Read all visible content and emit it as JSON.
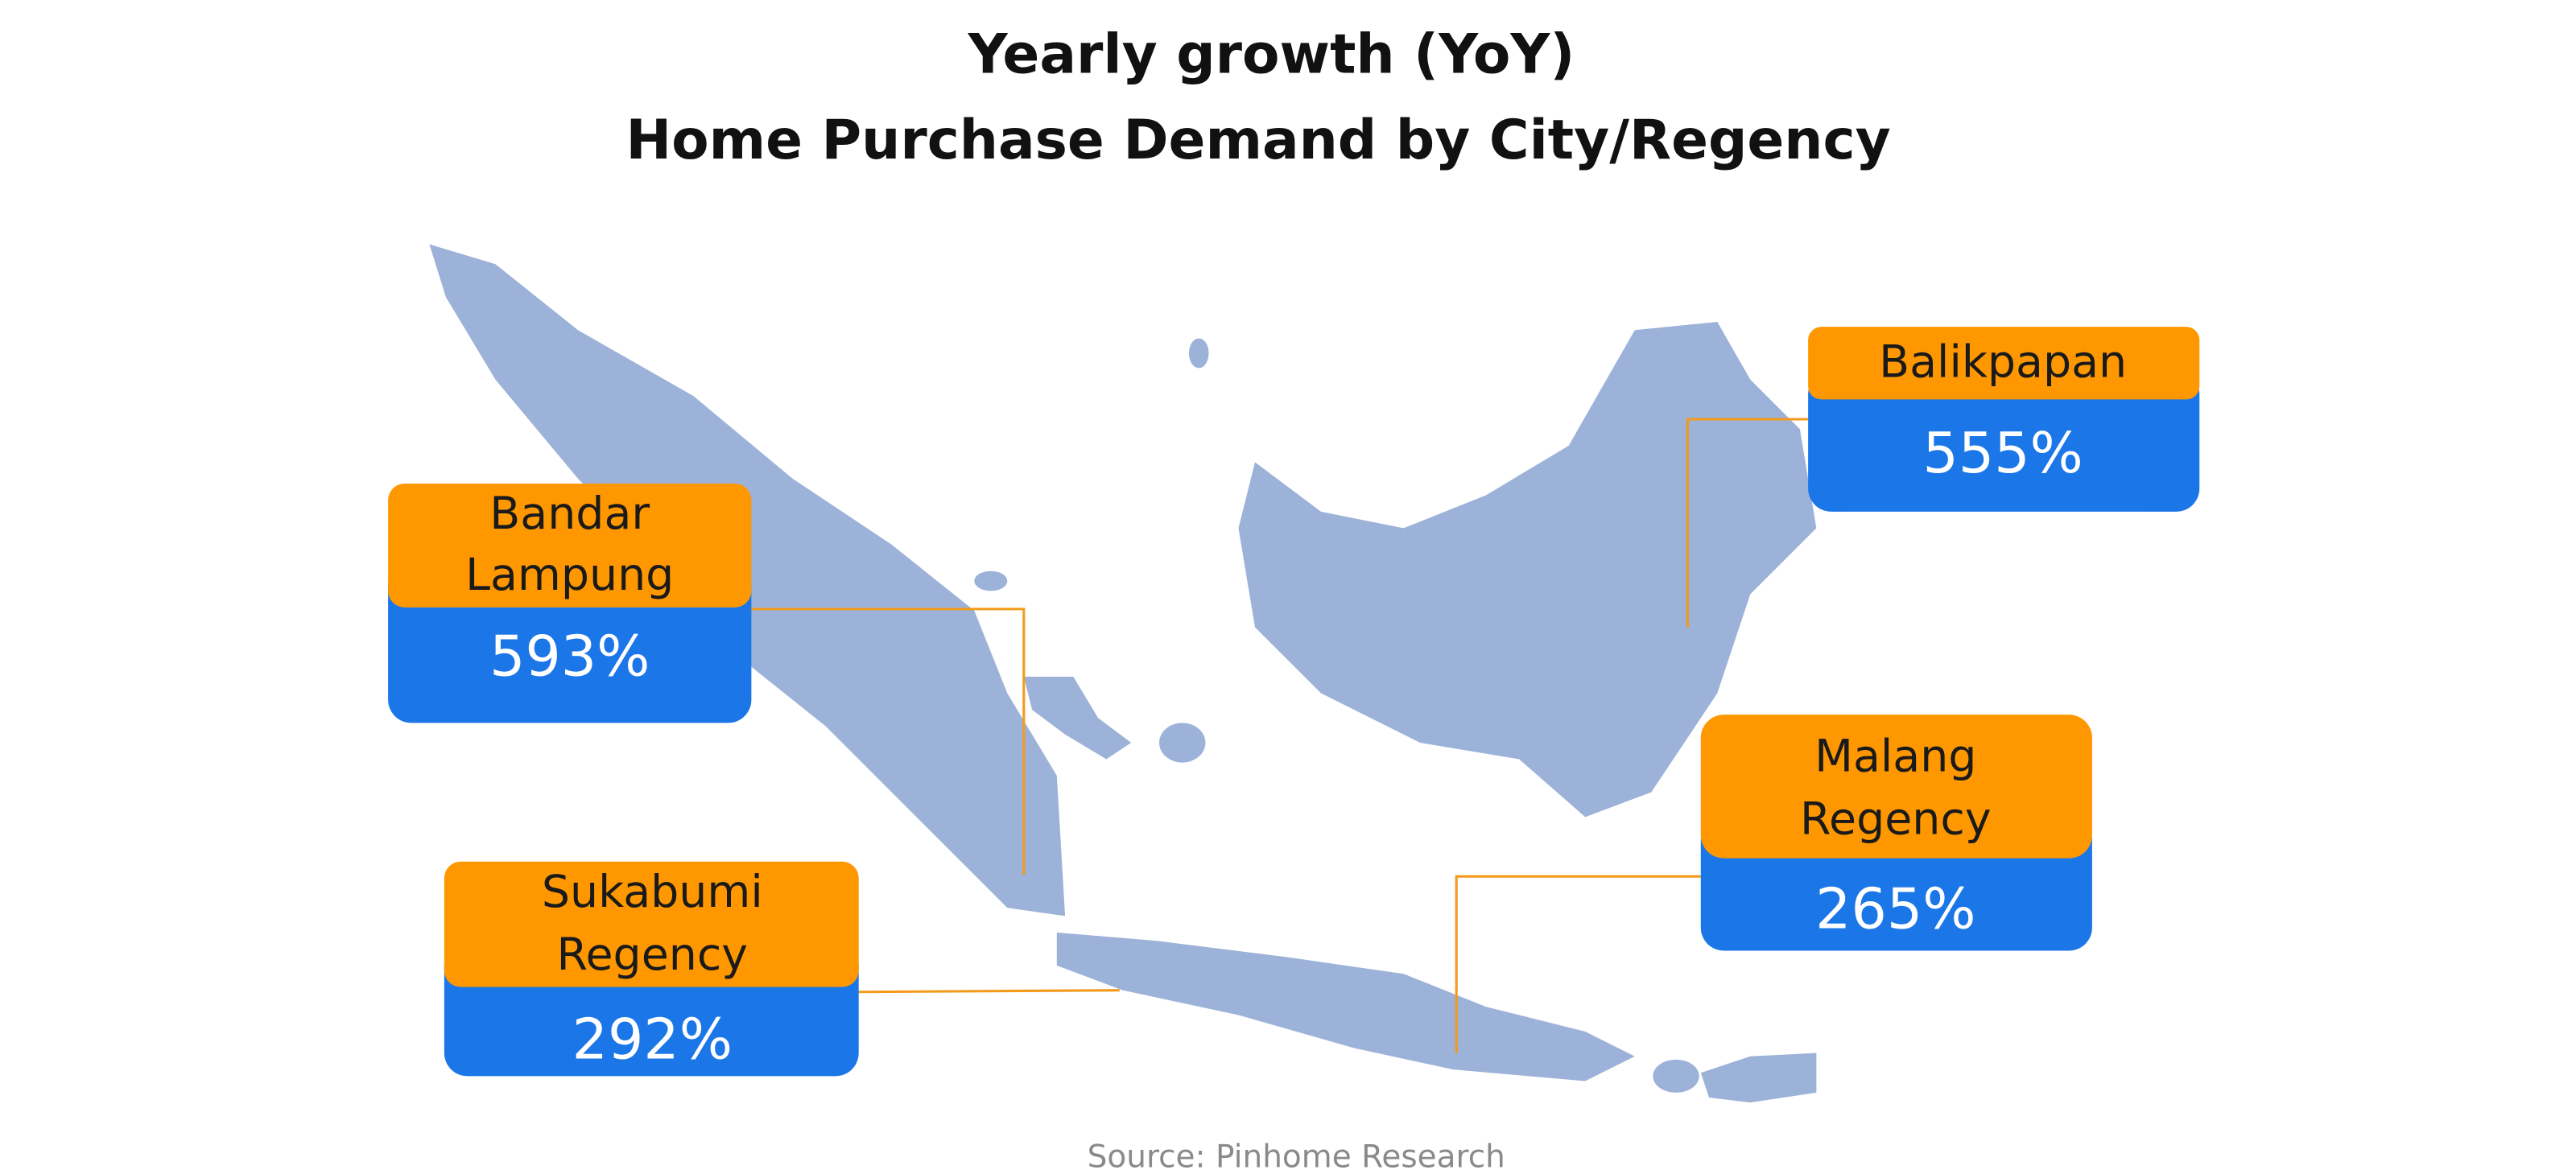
{
  "header": {
    "title": [
      "Yearly growth (YoY)",
      "Home Purchase Demand by City/Regency"
    ]
  },
  "callouts": [
    {
      "label": [
        "Bandar",
        "Lampung"
      ],
      "value": "593%"
    },
    {
      "label": [
        "Sukabumi",
        "Regency"
      ],
      "value": "292%"
    },
    {
      "label": [
        "Balikpapan"
      ],
      "value": "555%"
    },
    {
      "label": [
        "Malang",
        "Regency"
      ],
      "value": "265%"
    }
  ],
  "footer": {
    "source": "Source: Pinhome Research"
  }
}
